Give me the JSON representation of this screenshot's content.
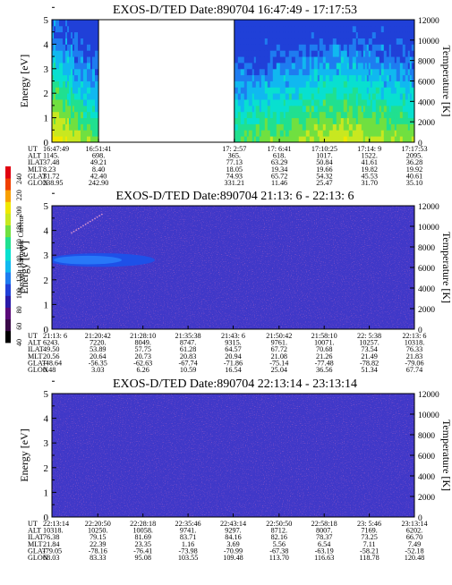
{
  "figure": {
    "colorbar": {
      "label": "Second Harmonic Current",
      "ticks": [
        "40",
        "60",
        "80",
        "100",
        "120",
        "140",
        "160",
        "180",
        "200",
        "220",
        "240"
      ],
      "colors": [
        "#000000",
        "#3a0a48",
        "#5a0a78",
        "#2a1aa8",
        "#2040d8",
        "#1e7cf0",
        "#10b8f0",
        "#08e0d0",
        "#20e090",
        "#70e040",
        "#c8e820",
        "#f0e800",
        "#f8a000",
        "#f04000",
        "#e00010"
      ]
    }
  },
  "chart_data": [
    {
      "type": "heatmap",
      "title": "EXOS-D/TED   Date:890704   16:47:49 - 17:17:53",
      "ylabel": "Energy [eV]",
      "y2label": "Temperature [K]",
      "ylim": [
        0,
        5
      ],
      "y2lim": [
        0,
        12000
      ],
      "yticks": [
        "0",
        "1",
        "2",
        "3",
        "4",
        "5"
      ],
      "y2ticks": [
        "0",
        "2000",
        "4000",
        "6000",
        "8000",
        "10000",
        "12000"
      ],
      "content": "spectrogram",
      "data_gap": [
        "16:51:41",
        "17:2:57"
      ],
      "ephemeris": {
        "labels": [
          "UT",
          "ALT",
          "ILAT",
          "MLT",
          "GLAT",
          "GLON"
        ],
        "columns": [
          [
            "16:47:49",
            "1145.",
            "37.48",
            "8.23",
            "31.72",
            "238.95"
          ],
          [
            "16:51:41",
            "698.",
            "49.21",
            "8.40",
            "42.40",
            "242.90"
          ],
          [
            "17: 2:57",
            "365.",
            "77.13",
            "18.05",
            "74.93",
            "331.21"
          ],
          [
            "17: 6:41",
            "618.",
            "63.29",
            "19.34",
            "65.72",
            "11.46"
          ],
          [
            "17:10:25",
            "1017.",
            "50.84",
            "19.66",
            "54.32",
            "25.47"
          ],
          [
            "17:14: 9",
            "1522.",
            "41.61",
            "19.82",
            "45.53",
            "31.70"
          ],
          [
            "17:17:53",
            "2095.",
            "36.28",
            "19.92",
            "40.61",
            "35.10"
          ]
        ]
      }
    },
    {
      "type": "heatmap",
      "title": "EXOS-D/TED   Date:890704   21:13: 6 - 22:13: 6",
      "ylabel": "Energy [eV]",
      "y2label": "Temperature [K]",
      "ylim": [
        0,
        5
      ],
      "y2lim": [
        0,
        12000
      ],
      "yticks": [
        "0",
        "1",
        "2",
        "3",
        "4",
        "5"
      ],
      "y2ticks": [
        "0",
        "2000",
        "4000",
        "6000",
        "8000",
        "10000",
        "12000"
      ],
      "content": "uniform-low",
      "ephemeris": {
        "labels": [
          "UT",
          "ALT",
          "ILAT",
          "MLT",
          "GLAT",
          "GLON"
        ],
        "columns": [
          [
            "21:13: 6",
            "6243.",
            "49.50",
            "20.56",
            "-48.64",
            "0.48"
          ],
          [
            "21:20:42",
            "7220.",
            "53.89",
            "20.64",
            "-56.35",
            "3.03"
          ],
          [
            "21:28:10",
            "8049.",
            "57.75",
            "20.73",
            "-62.63",
            "6.26"
          ],
          [
            "21:35:38",
            "8747.",
            "61.28",
            "20.83",
            "-67.74",
            "10.59"
          ],
          [
            "21:43: 6",
            "9315.",
            "64.57",
            "20.94",
            "-71.86",
            "16.54"
          ],
          [
            "21:50:42",
            "9761.",
            "67.72",
            "21.08",
            "-75.14",
            "25.04"
          ],
          [
            "21:58:10",
            "10071.",
            "70.68",
            "21.26",
            "-77.48",
            "36.56"
          ],
          [
            "22: 5:38",
            "10257.",
            "73.54",
            "21.49",
            "-78.82",
            "51.34"
          ],
          [
            "22:13: 6",
            "10318.",
            "76.33",
            "21.83",
            "-79.06",
            "67.74"
          ]
        ]
      }
    },
    {
      "type": "heatmap",
      "title": "EXOS-D/TED   Date:890704   22:13:14 - 23:13:14",
      "ylabel": "Energy [eV]",
      "y2label": "Temperature [K]",
      "ylim": [
        0,
        5
      ],
      "y2lim": [
        0,
        12000
      ],
      "yticks": [
        "0",
        "1",
        "2",
        "3",
        "4",
        "5"
      ],
      "y2ticks": [
        "0",
        "2000",
        "4000",
        "6000",
        "8000",
        "10000",
        "12000"
      ],
      "content": "uniform-low",
      "ephemeris": {
        "labels": [
          "UT",
          "ALT",
          "ILAT",
          "MLT",
          "GLAT",
          "GLON"
        ],
        "columns": [
          [
            "22:13:14",
            "10318.",
            "76.38",
            "21.84",
            "-79.05",
            "68.03"
          ],
          [
            "22:20:50",
            "10250.",
            "79.15",
            "22.39",
            "-78.16",
            "83.33"
          ],
          [
            "22:28:18",
            "10058.",
            "81.69",
            "23.35",
            "-76.41",
            "95.08"
          ],
          [
            "22:35:46",
            "9741.",
            "83.71",
            "1.16",
            "-73.98",
            "103.55"
          ],
          [
            "22:43:14",
            "9297.",
            "84.16",
            "3.69",
            "-70.99",
            "109.48"
          ],
          [
            "22:50:50",
            "8712.",
            "82.16",
            "5.56",
            "-67.38",
            "113.70"
          ],
          [
            "22:58:18",
            "8007.",
            "78.37",
            "6.54",
            "-63.19",
            "116.63"
          ],
          [
            "23: 5:46",
            "7169.",
            "73.25",
            "7.11",
            "-58.21",
            "118.78"
          ],
          [
            "23:13:14",
            "6202.",
            "66.70",
            "7.49",
            "-52.18",
            "120.48"
          ]
        ]
      }
    }
  ]
}
